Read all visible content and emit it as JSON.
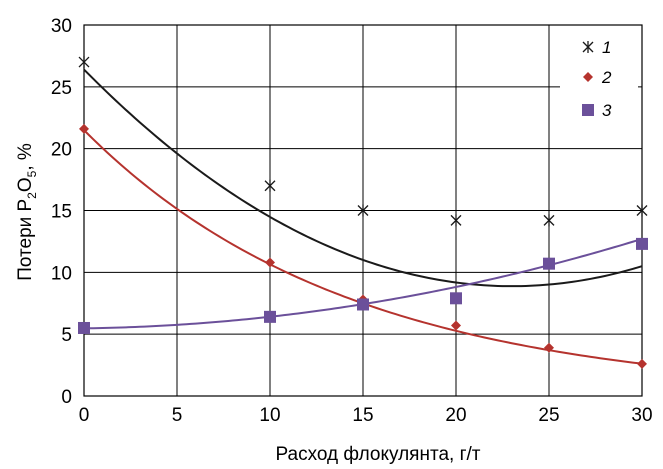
{
  "chart_data": {
    "type": "scatter",
    "xlabel": "Расход флокулянта, г/т",
    "ylabel_main": "Потери P",
    "ylabel_sub1": "2",
    "ylabel_mid": "O",
    "ylabel_sub2": "5",
    "ylabel_tail": ", %",
    "xlim": [
      0,
      30
    ],
    "ylim": [
      0,
      30
    ],
    "x_ticks": [
      "0",
      "5",
      "10",
      "15",
      "20",
      "25",
      "30"
    ],
    "y_ticks": [
      "0",
      "5",
      "10",
      "15",
      "20",
      "25",
      "30"
    ],
    "grid": true,
    "legend_position": "top-right",
    "series": [
      {
        "name": "1",
        "marker": "asterisk",
        "color": "#1a1a1a",
        "x": [
          0,
          10,
          15,
          20,
          25,
          30
        ],
        "y": [
          27.0,
          17.0,
          15.0,
          14.2,
          14.2,
          15.0
        ],
        "trend": {
          "type": "poly2",
          "coef": [
            0.0331,
            -1.523,
            26.4
          ]
        }
      },
      {
        "name": "2",
        "marker": "diamond",
        "color": "#b5332e",
        "x": [
          0,
          10,
          15,
          20,
          25,
          30
        ],
        "y": [
          21.6,
          10.8,
          7.8,
          5.7,
          3.9,
          2.6
        ],
        "trend": {
          "type": "exp",
          "a": 21.5,
          "b": -0.0703
        }
      },
      {
        "name": "3",
        "marker": "square",
        "color": "#6b509a",
        "x": [
          0,
          10,
          15,
          20,
          25,
          30
        ],
        "y": [
          5.5,
          6.4,
          7.4,
          7.9,
          10.7,
          12.3
        ],
        "trend": {
          "type": "poly2",
          "coef": [
            0.00737,
            0.02,
            5.47
          ]
        }
      }
    ]
  }
}
